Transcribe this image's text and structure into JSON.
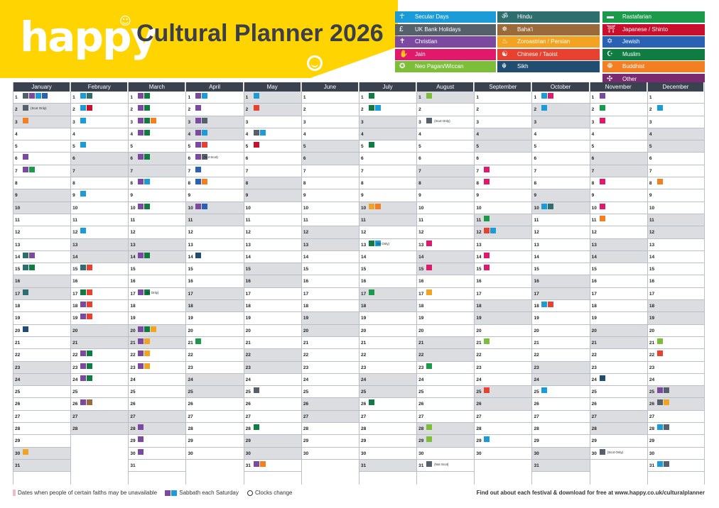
{
  "header": {
    "logo": "happy",
    "title": "Cultural Planner 2026"
  },
  "legend": {
    "col1": [
      {
        "label": "Secular Days",
        "color": "#1b9bd7",
        "icon": "secular-icon",
        "glyph": "☥"
      },
      {
        "label": "UK Bank Holidays",
        "color": "#56606b",
        "icon": "pound-icon",
        "glyph": "£"
      },
      {
        "label": "Christian",
        "color": "#7b4aa0",
        "icon": "cross-icon",
        "glyph": "✝"
      },
      {
        "label": "Jain",
        "color": "#e0196a",
        "icon": "hand-icon",
        "glyph": "✋"
      },
      {
        "label": "Neo Pagan/Wiccan",
        "color": "#7cbd3a",
        "icon": "pentacle-icon",
        "glyph": "✪"
      }
    ],
    "col2": [
      {
        "label": "Hindu",
        "color": "#2f6e6e",
        "icon": "om-icon",
        "glyph": "ॐ"
      },
      {
        "label": "Baha'i",
        "color": "#9a6a3a",
        "icon": "star-icon",
        "glyph": "✵"
      },
      {
        "label": "Zoroastrian / Persian",
        "color": "#f1a321",
        "icon": "fire-icon",
        "glyph": "♨"
      },
      {
        "label": "Chinese / Taoist",
        "color": "#e8412f",
        "icon": "yinyang-icon",
        "glyph": "☯"
      },
      {
        "label": "Sikh",
        "color": "#214e70",
        "icon": "khanda-icon",
        "glyph": "☬"
      }
    ],
    "col3": [
      {
        "label": "Rastafarian",
        "color": "#1a9a4a",
        "icon": "flag-icon",
        "glyph": "▬"
      },
      {
        "label": "Japanese / Shinto",
        "color": "#c8102e",
        "icon": "torii-icon",
        "glyph": "⛩"
      },
      {
        "label": "Jewish",
        "color": "#2a61b5",
        "icon": "david-icon",
        "glyph": "✡"
      },
      {
        "label": "Muslim",
        "color": "#0f7d42",
        "icon": "crescent-icon",
        "glyph": "☪"
      },
      {
        "label": "Buddhist",
        "color": "#f28023",
        "icon": "wheel-icon",
        "glyph": "☸"
      },
      {
        "label": "Other",
        "color": "#7a2a6e",
        "icon": "other-icon",
        "glyph": "✣"
      }
    ]
  },
  "colors": {
    "secular": "#1b9bd7",
    "bank": "#56606b",
    "christian": "#7b4aa0",
    "jain": "#e0196a",
    "pagan": "#7cbd3a",
    "hindu": "#2f6e6e",
    "bahai": "#9a6a3a",
    "zoro": "#f1a321",
    "chinese": "#e8412f",
    "sikh": "#214e70",
    "rasta": "#1a9a4a",
    "shinto": "#c8102e",
    "jewish": "#2a61b5",
    "muslim": "#0f7d42",
    "buddhist": "#f28023",
    "other": "#7a2a6e",
    "unavail": "#f4b6cc"
  },
  "months": [
    {
      "name": "January",
      "days": 31,
      "start": 4
    },
    {
      "name": "February",
      "days": 28,
      "start": 0
    },
    {
      "name": "March",
      "days": 31,
      "start": 0
    },
    {
      "name": "April",
      "days": 30,
      "start": 3
    },
    {
      "name": "May",
      "days": 31,
      "start": 5
    },
    {
      "name": "June",
      "days": 30,
      "start": 1
    },
    {
      "name": "July",
      "days": 31,
      "start": 3
    },
    {
      "name": "August",
      "days": 31,
      "start": 6
    },
    {
      "name": "September",
      "days": 30,
      "start": 2
    },
    {
      "name": "October",
      "days": 31,
      "start": 4
    },
    {
      "name": "November",
      "days": 30,
      "start": 0
    },
    {
      "name": "December",
      "days": 31,
      "start": 2
    }
  ],
  "events": {
    "0": {
      "1": [
        "bank",
        "christian",
        "secular",
        "jewish"
      ],
      "2": [
        "bank"
      ],
      "3": [
        "buddhist"
      ],
      "6": [
        "christian"
      ],
      "7": [
        "christian",
        "rasta"
      ],
      "14": [
        "hindu",
        "christian"
      ],
      "15": [
        "hindu",
        "muslim"
      ],
      "17": [
        "hindu"
      ],
      "20": [
        "sikh"
      ],
      "30": [
        "zoro"
      ]
    },
    "1": {
      "1": [
        "secular",
        "hindu"
      ],
      "2": [
        "secular",
        "shinto"
      ],
      "3": [
        "secular"
      ],
      "5": [
        "secular"
      ],
      "9": [
        "secular"
      ],
      "12": [
        "secular"
      ],
      "15": [
        "hindu",
        "chinese"
      ],
      "17": [
        "muslim",
        "chinese"
      ],
      "18": [
        "christian",
        "chinese"
      ],
      "19": [
        "christian",
        "chinese"
      ],
      "22": [
        "christian",
        "muslim"
      ],
      "23": [
        "christian",
        "muslim"
      ],
      "24": [
        "christian",
        "muslim"
      ],
      "26": [
        "christian",
        "bahai"
      ]
    },
    "2": {
      "1": [
        "christian",
        "muslim"
      ],
      "2": [
        "christian",
        "muslim"
      ],
      "3": [
        "christian",
        "muslim",
        "buddhist"
      ],
      "4": [
        "christian",
        "muslim"
      ],
      "6": [
        "christian",
        "muslim"
      ],
      "8": [
        "christian",
        "secular"
      ],
      "10": [
        "christian",
        "muslim"
      ],
      "14": [
        "christian",
        "muslim"
      ],
      "17": [
        "christian",
        "muslim"
      ],
      "20": [
        "christian",
        "muslim",
        "zoro"
      ],
      "21": [
        "christian",
        "zoro"
      ],
      "22": [
        "christian",
        "zoro"
      ],
      "23": [
        "christian",
        "zoro"
      ],
      "28": [
        "christian"
      ],
      "29": [
        "christian"
      ],
      "30": [
        "christian"
      ]
    },
    "3": {
      "1": [
        "christian",
        "secular"
      ],
      "2": [
        "christian"
      ],
      "3": [
        "christian",
        "bank"
      ],
      "4": [
        "christian",
        "secular"
      ],
      "5": [
        "christian",
        "chinese"
      ],
      "6": [
        "christian",
        "bank"
      ],
      "7": [
        "jewish"
      ],
      "8": [
        "jewish",
        "buddhist"
      ],
      "10": [
        "christian",
        "jewish"
      ],
      "14": [
        "sikh"
      ],
      "21": [
        "rasta"
      ]
    },
    "4": {
      "1": [
        "secular"
      ],
      "2": [
        "chinese"
      ],
      "4": [
        "bank",
        "secular"
      ],
      "5": [
        "shinto"
      ],
      "25": [
        "bank"
      ],
      "28": [
        "muslim"
      ],
      "31": [
        "christian",
        "buddhist"
      ]
    },
    "5": {},
    "6": {
      "1": [
        "muslim"
      ],
      "2": [
        "muslim",
        "secular"
      ],
      "5": [
        "muslim"
      ],
      "10": [
        "zoro",
        "buddhist"
      ],
      "13": [
        "muslim",
        "secular"
      ],
      "17": [
        "rasta"
      ],
      "26": [
        "muslim"
      ]
    },
    "7": {
      "1": [
        "pagan"
      ],
      "3": [
        "bank"
      ],
      "13": [
        "jain"
      ],
      "15": [
        "jain"
      ],
      "17": [
        "zoro"
      ],
      "23": [
        "rasta"
      ],
      "28": [
        "pagan"
      ],
      "29": [
        "pagan"
      ],
      "31": [
        "bank"
      ]
    },
    "8": {
      "7": [
        "jain"
      ],
      "8": [
        "jain"
      ],
      "11": [
        "rasta"
      ],
      "12": [
        "chinese",
        "secular"
      ],
      "14": [
        "jain"
      ],
      "15": [
        "jain"
      ],
      "21": [
        "pagan"
      ],
      "25": [
        "chinese"
      ],
      "29": [
        "secular"
      ]
    },
    "9": {
      "1": [
        "secular",
        "jain"
      ],
      "2": [
        "secular"
      ],
      "10": [
        "secular",
        "hindu"
      ],
      "18": [
        "secular",
        "chinese"
      ],
      "25": [
        "secular"
      ]
    },
    "10": {
      "1": [
        "christian"
      ],
      "2": [
        "rasta"
      ],
      "3": [
        "jain"
      ],
      "8": [
        "jain"
      ],
      "10": [
        "jain"
      ],
      "11": [
        "buddhist"
      ],
      "24": [
        "sikh"
      ],
      "30": [
        "bank"
      ]
    },
    "11": {
      "2": [
        "secular"
      ],
      "8": [
        "buddhist"
      ],
      "21": [
        "pagan"
      ],
      "22": [
        "chinese"
      ],
      "25": [
        "christian",
        "bank"
      ],
      "26": [
        "bank",
        "zoro"
      ],
      "28": [
        "secular",
        "bank"
      ],
      "31": [
        "secular",
        "bank"
      ]
    }
  },
  "notes": {
    "0": {
      "2": "(Scot Only)"
    },
    "2": {
      "17": "(NI Only)"
    },
    "3": {
      "6": "(Not Scot)"
    },
    "6": {
      "13": "(NI Only)"
    },
    "7": {
      "3": "(Scot Only)",
      "31": "(Not Scot)"
    },
    "10": {
      "30": "(Scot Only)"
    }
  },
  "footer": {
    "unavailable": "Dates when people of certain faiths may be unavailable",
    "sabbath": "Sabbath each Saturday",
    "clocks": "Clocks change",
    "link": "Find out about each festival & download for free at www.happy.co.uk/culturalplanner"
  }
}
